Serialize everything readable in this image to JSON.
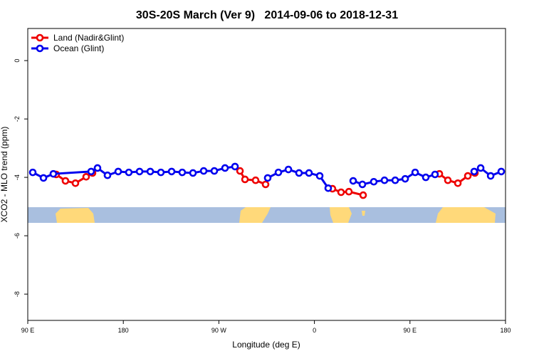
{
  "chart_data": {
    "type": "line",
    "title": "30S-20S March (Ver 9)   2014-09-06 to 2018-12-31",
    "xlabel": "Longitude (deg E)",
    "ylabel": "XCO2 - MLO trend (ppm)",
    "xlim": [
      90,
      540
    ],
    "xticks": [
      {
        "value": 90,
        "label": "90 E"
      },
      180,
      {
        "value": 270,
        "label": "90 W"
      },
      {
        "value": 360,
        "label": "0"
      },
      {
        "value": 450,
        "label": "90 E"
      },
      {
        "value": 540,
        "label": "180"
      }
    ],
    "ylim": [
      -8.9,
      1.1
    ],
    "yticks": [
      0,
      -2,
      -4,
      -6,
      -8
    ],
    "legend": "top-left",
    "series": [
      {
        "name": "Land (Nadir&Glint)",
        "color": "#ee0000",
        "x": [
          116.8,
          125.5,
          134.9,
          145,
          151,
          null,
          289.9,
          294.6,
          304.6,
          314,
          null,
          377,
          385.1,
          392.5,
          405.9,
          null,
          477.7,
          485.7,
          495.1,
          504.5,
          511.2
        ],
        "values": [
          -3.9,
          -4.12,
          -4.2,
          -3.98,
          -3.85,
          null,
          -3.78,
          -4.07,
          -4.1,
          -4.24,
          null,
          -4.39,
          -4.51,
          -4.49,
          -4.61,
          null,
          -3.88,
          -4.1,
          -4.2,
          -3.95,
          -3.85
        ]
      },
      {
        "name": "Ocean (Glint)",
        "color": "#0000ee",
        "x": [
          94.7,
          104.8,
          114.1,
          149.7,
          155.7,
          165.1,
          175.2,
          185.2,
          195.3,
          205.4,
          215.4,
          225.5,
          235.5,
          245.6,
          255.7,
          265.7,
          275.8,
          285.2,
          null,
          316,
          326.1,
          335.5,
          345.5,
          354.9,
          365,
          373,
          null,
          396.5,
          405.2,
          415.9,
          426,
          436.1,
          445.5,
          454.9,
          464.9,
          473.6,
          null,
          510.5,
          516.6,
          526,
          536
        ],
        "values": [
          -3.83,
          -4.02,
          -3.88,
          -3.8,
          -3.68,
          -3.93,
          -3.8,
          -3.83,
          -3.8,
          -3.8,
          -3.83,
          -3.8,
          -3.83,
          -3.85,
          -3.78,
          -3.78,
          -3.68,
          -3.63,
          null,
          -4.02,
          -3.83,
          -3.73,
          -3.85,
          -3.85,
          -3.95,
          -4.37,
          null,
          -4.12,
          -4.24,
          -4.15,
          -4.1,
          -4.1,
          -4.05,
          -3.83,
          -4.0,
          -3.9,
          null,
          -3.8,
          -3.68,
          -3.95,
          -3.8
        ]
      }
    ]
  }
}
